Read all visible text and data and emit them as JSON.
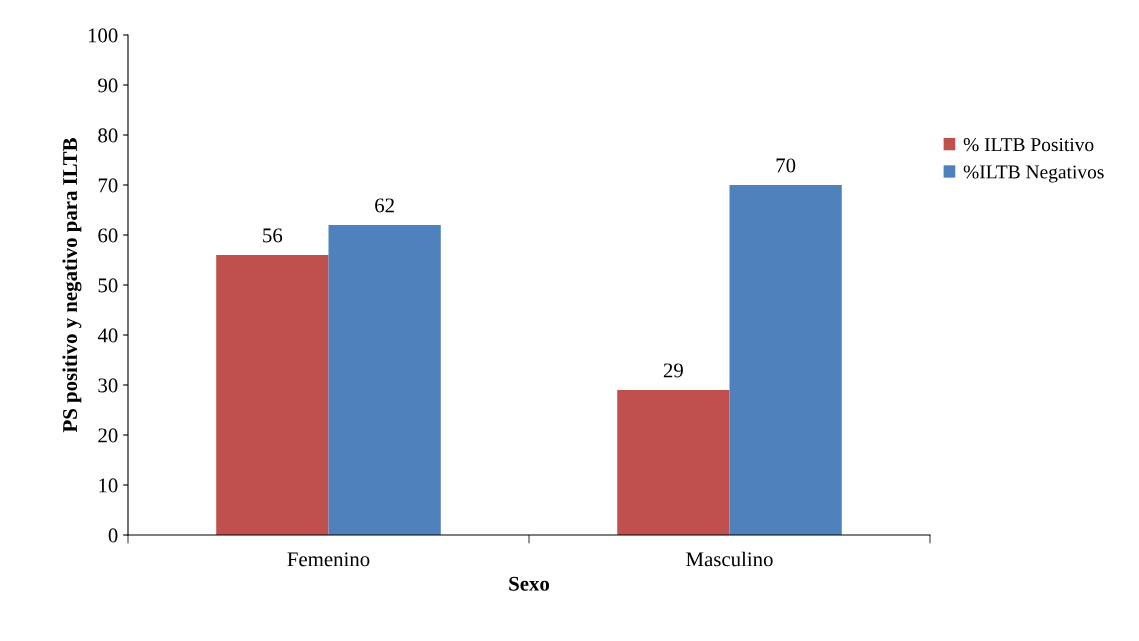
{
  "chart_data": {
    "type": "bar",
    "xlabel": "Sexo",
    "ylabel": "PS positivo y negativo para ILTB",
    "categories": [
      "Femenino",
      "Masculino"
    ],
    "series": [
      {
        "name": "% ILTB Positivo",
        "color": "#c0504d",
        "values": [
          56,
          29
        ]
      },
      {
        "name": "%ILTB Negativos",
        "color": "#4f81bd",
        "values": [
          62,
          70
        ]
      }
    ],
    "ylim": [
      0,
      100
    ],
    "yticks": [
      0,
      10,
      20,
      30,
      40,
      50,
      60,
      70,
      80,
      90,
      100
    ],
    "data_labels": true,
    "grid": false,
    "legend": "right"
  }
}
